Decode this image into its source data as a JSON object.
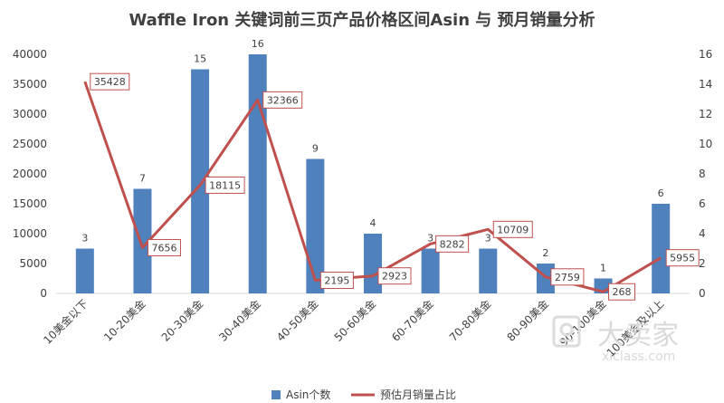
{
  "chart_data": {
    "type": "bar",
    "title": "Waffle Iron 关键词前三页产品价格区间Asin 与 预月销量分析",
    "categories": [
      "10美金以下",
      "10-20美金",
      "20-30美金",
      "30-40美金",
      "40-50美金",
      "50-60美金",
      "60-70美金",
      "70-80美金",
      "80-90美金",
      "90-100美金",
      "100美金及以上"
    ],
    "y_left": {
      "range": [
        0,
        40000
      ],
      "ticks": [
        0,
        5000,
        10000,
        15000,
        20000,
        25000,
        30000,
        35000,
        40000
      ]
    },
    "y_right": {
      "range": [
        0,
        16
      ],
      "ticks": [
        0,
        2,
        4,
        6,
        8,
        10,
        12,
        14,
        16
      ]
    },
    "grid": false,
    "legend_position": "bottom",
    "series": [
      {
        "name": "Asin个数",
        "type": "bar",
        "axis": "right",
        "color": "#4f81bd",
        "values": [
          3,
          7,
          15,
          16,
          9,
          4,
          3,
          3,
          2,
          1,
          6
        ]
      },
      {
        "name": "预估月销量占比",
        "type": "line",
        "axis": "left",
        "color": "#c0504d",
        "values": [
          35428,
          7656,
          18115,
          32366,
          2195,
          2923,
          8282,
          10709,
          2759,
          268,
          5955
        ]
      }
    ]
  },
  "watermark": {
    "brand": "大卖家",
    "site": "xiclass.com"
  }
}
